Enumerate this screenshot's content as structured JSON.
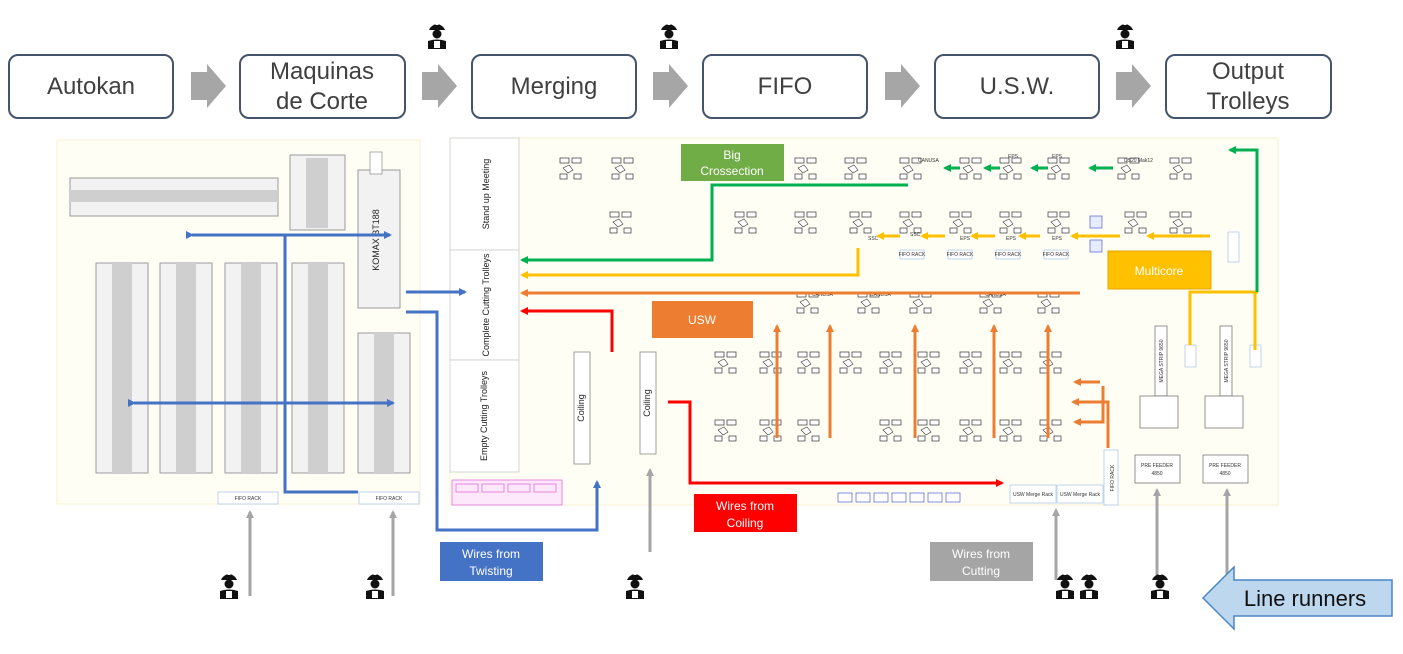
{
  "process_steps": [
    {
      "label_lines": [
        "Autokan"
      ]
    },
    {
      "label_lines": [
        "Maquinas",
        "de Corte"
      ]
    },
    {
      "label_lines": [
        "Merging"
      ]
    },
    {
      "label_lines": [
        "FIFO"
      ]
    },
    {
      "label_lines": [
        "U.S.W."
      ]
    },
    {
      "label_lines": [
        "Output",
        "Trolleys"
      ]
    }
  ],
  "zones": {
    "standup_meeting": "Stand up Meeting",
    "complete_trolleys": "Complete Cutting Trolleys",
    "empty_trolleys": "Empty Cutting Trolleys"
  },
  "labels": {
    "big_crossection": [
      "Big",
      "Crossection"
    ],
    "multicore": "Multicore",
    "usw": "USW",
    "wires_twisting": [
      "Wires from",
      "Twisting"
    ],
    "wires_coiling": [
      "Wires from",
      "Coiling"
    ],
    "wires_cutting": [
      "Wires from",
      "Cutting"
    ],
    "line_runners": "Line runners"
  },
  "machines": {
    "komax": "KOMAX BT188",
    "fifo_rack": "FIFO RACK",
    "coiling": "Coiling",
    "usw_merge_rack": "USW Merge Rack",
    "mega_strip": "MEGA STRIP 9650",
    "pre_feeder": "PRE FEEDER",
    "pre_feeder_num": "4850",
    "canusa": "CANUSA",
    "eps": "EPS",
    "ssc": "SSC",
    "ds20": "DS20 Mak12",
    "minic": "MINIC18",
    "output_rack": "Output Rack"
  },
  "colors": {
    "step_border": "#44546a",
    "chevron": "#a6a6a6",
    "twisting_blue": "#4472c4",
    "coiling_red": "#ff0000",
    "usw_orange": "#ed7d31",
    "multicore_gold": "#ffc000",
    "crossection_green": "#70ad47",
    "arrow_green": "#00b050",
    "cutting_gray": "#a5a5a5",
    "runner_arrow": "#bdd7ee"
  },
  "icons": {
    "worker": "worker-icon",
    "chevron": "chevron-right-icon"
  }
}
